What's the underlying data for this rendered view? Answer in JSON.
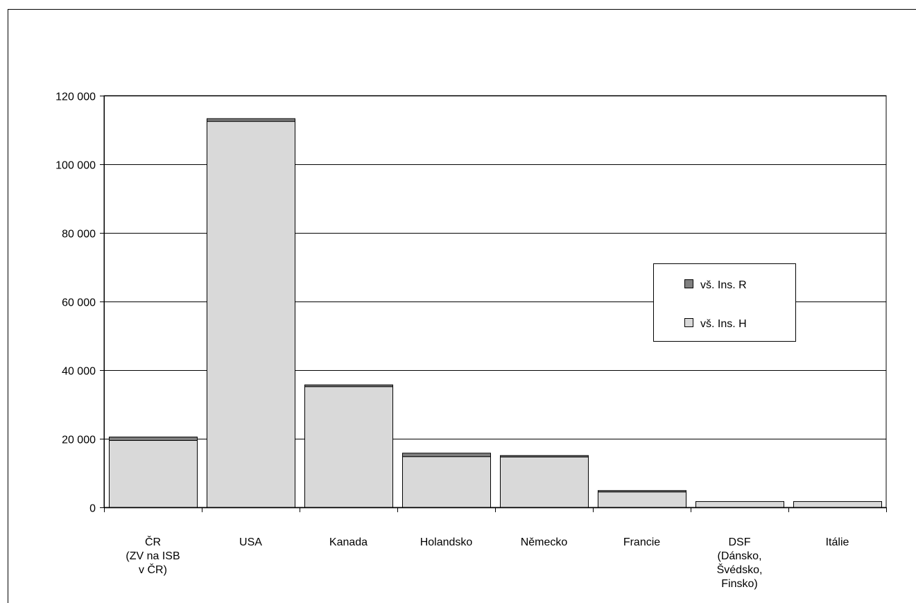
{
  "chart_data": {
    "type": "bar",
    "stacked": true,
    "categories": [
      [
        "ČR",
        "(ZV na ISB",
        "v ČR)"
      ],
      [
        "USA"
      ],
      [
        "Kanada"
      ],
      [
        "Holandsko"
      ],
      [
        "Německo"
      ],
      [
        "Francie"
      ],
      [
        "DSF",
        "(Dánsko,",
        "Švédsko,",
        "Finsko)"
      ],
      [
        "Itálie"
      ]
    ],
    "series": [
      {
        "name": "vš. Ins. H",
        "color": "#d9d9d9",
        "values": [
          19500,
          112500,
          35200,
          14800,
          14700,
          4500,
          1700,
          1700
        ]
      },
      {
        "name": "vš. Ins. R",
        "color": "#808080",
        "values": [
          1000,
          800,
          500,
          1000,
          400,
          400,
          0,
          0
        ]
      }
    ],
    "ylim": [
      0,
      120000
    ],
    "yticks": [
      0,
      20000,
      40000,
      60000,
      80000,
      100000,
      120000
    ],
    "ytick_labels": [
      "0",
      "20 000",
      "40 000",
      "60 000",
      "80 000",
      "100 000",
      "120 000"
    ],
    "grid": true,
    "legend": {
      "placement": "right",
      "entries": [
        "vš. Ins. R",
        "vš. Ins. H"
      ]
    },
    "title": "",
    "xlabel": "",
    "ylabel": ""
  }
}
